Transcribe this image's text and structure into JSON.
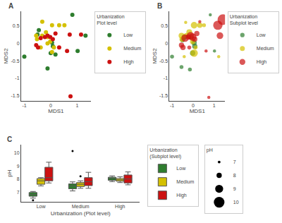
{
  "chart_data": [
    {
      "type": "scatter",
      "title": "A",
      "xlabel": "MDS1",
      "ylabel": "MDS2",
      "xlim": [
        -1.12,
        1.52
      ],
      "ylim": [
        -1.65,
        0.92
      ],
      "xticks": [
        -1,
        0,
        1
      ],
      "yticks": [
        -1.5,
        -1,
        -0.5,
        0,
        0.5
      ],
      "grid": false,
      "legend": "right",
      "legend_title": "Urbanization\nPlot level",
      "series": [
        {
          "name": "Low",
          "color": "#2e7d2e",
          "x": [
            -1.0,
            -0.5,
            -0.45,
            0.05,
            0.08,
            0.0,
            0.18,
            -0.12,
            0.82,
            1.02,
            1.32
          ],
          "y": [
            -0.38,
            0.25,
            0.38,
            0.02,
            -0.08,
            -0.28,
            -0.32,
            -0.72,
            0.82,
            -0.22,
            0.22
          ]
        },
        {
          "name": "Medium",
          "color": "#d4c000",
          "x": [
            -0.32,
            -0.52,
            -0.55,
            -0.32,
            -0.18,
            0.05,
            0.32,
            0.52,
            -0.12,
            -0.02,
            0.12,
            0.05,
            -0.38,
            -0.12
          ],
          "y": [
            0.62,
            0.12,
            0.22,
            0.22,
            0.32,
            0.52,
            0.52,
            0.52,
            0.18,
            0.05,
            -0.12,
            -0.25,
            -0.12,
            0.0
          ]
        },
        {
          "name": "High",
          "color": "#cc1111",
          "x": [
            -0.55,
            -0.48,
            -0.38,
            -0.22,
            -0.12,
            -0.02,
            0.08,
            0.18,
            0.32,
            0.62,
            0.72,
            1.15,
            0.75
          ],
          "y": [
            -0.05,
            -0.12,
            0.15,
            0.18,
            0.22,
            0.18,
            0.12,
            0.28,
            -0.12,
            -0.22,
            0.25,
            0.25,
            -1.52
          ]
        }
      ]
    },
    {
      "type": "bubble",
      "title": "B",
      "xlabel": "MDS1",
      "ylabel": "MDS2",
      "xlim": [
        -1.12,
        1.52
      ],
      "ylim": [
        -1.65,
        0.92
      ],
      "xticks": [
        -1,
        0,
        1
      ],
      "yticks": [
        -1.5,
        -1,
        -0.5,
        0,
        0.5
      ],
      "grid": false,
      "legend": "right",
      "legend_title": "Urbanization\nSubplot level",
      "size_legend": {
        "title": "pH",
        "values": [
          7,
          8,
          9,
          10
        ]
      },
      "series": [
        {
          "name": "Low",
          "color": "#2e7d2e",
          "x": [
            -1.0,
            -0.5,
            -0.42,
            -0.55,
            0.05,
            0.08,
            -0.02,
            -0.15,
            0.82,
            1.02
          ],
          "y": [
            -0.38,
            0.1,
            0.18,
            -0.68,
            0.02,
            -0.08,
            -0.28,
            -0.75,
            0.82,
            -0.22
          ],
          "sizes": [
            7.5,
            7.8,
            8.0,
            7.5,
            8.0,
            8.0,
            8.0,
            7.5,
            7.2,
            7.2
          ]
        },
        {
          "name": "Medium",
          "color": "#d4c000",
          "x": [
            -0.35,
            -0.52,
            -0.55,
            -0.32,
            -0.18,
            0.05,
            0.32,
            0.52,
            -0.12,
            -0.02,
            0.12,
            0.05,
            -0.42,
            1.22
          ],
          "y": [
            0.6,
            0.12,
            0.22,
            0.22,
            0.32,
            0.52,
            0.52,
            0.52,
            0.18,
            0.05,
            -0.12,
            -0.28,
            -0.38,
            -0.38
          ],
          "sizes": [
            7.2,
            8.0,
            8.2,
            8.0,
            8.2,
            8.5,
            8.0,
            7.5,
            8.0,
            8.0,
            7.5,
            8.8,
            7.2,
            7.2
          ]
        },
        {
          "name": "High",
          "color": "#cc1111",
          "x": [
            -0.55,
            -0.48,
            -0.38,
            -0.22,
            -0.12,
            -0.02,
            0.08,
            0.18,
            -0.18,
            0.62,
            1.18,
            1.28,
            1.42,
            0.75,
            0.32
          ],
          "y": [
            -0.05,
            -0.12,
            0.15,
            0.18,
            0.22,
            0.18,
            0.12,
            0.28,
            -0.12,
            -0.22,
            0.52,
            0.22,
            0.68,
            -1.55,
            0.62
          ],
          "sizes": [
            8.0,
            8.0,
            8.8,
            8.0,
            8.8,
            8.8,
            8.0,
            8.0,
            7.5,
            7.2,
            9.5,
            8.5,
            10.0,
            7.2,
            7.2
          ]
        }
      ]
    },
    {
      "type": "box",
      "title": "C",
      "xlabel": "Urbanization (Plot level)",
      "ylabel": "pH",
      "categories": [
        "Low",
        "Medium",
        "High"
      ],
      "ylim": [
        6.3,
        10.6
      ],
      "yticks": [
        7,
        8,
        9,
        10
      ],
      "grid": false,
      "legend": "right",
      "legend_title": "Urbanization\n(Subplot level)",
      "series": [
        {
          "name": "Low",
          "color": "#2e7d2e",
          "q1": [
            6.72,
            7.28,
            7.92
          ],
          "median": [
            6.85,
            7.5,
            8.05
          ],
          "q3": [
            7.0,
            7.65,
            8.15
          ],
          "whislo": [
            6.58,
            7.12,
            7.82
          ],
          "whishi": [
            7.08,
            7.8,
            8.25
          ],
          "fliers": [
            [
              6.42
            ],
            [
              10.12
            ],
            []
          ]
        },
        {
          "name": "Medium",
          "color": "#d4c000",
          "q1": [
            7.62,
            7.45,
            7.85
          ],
          "median": [
            7.88,
            7.62,
            7.95
          ],
          "q3": [
            8.05,
            7.75,
            8.05
          ],
          "whislo": [
            7.5,
            7.32,
            7.75
          ],
          "whishi": [
            8.12,
            7.88,
            8.18
          ],
          "fliers": [
            [],
            [
              8.22
            ],
            []
          ]
        },
        {
          "name": "High",
          "color": "#cc1111",
          "q1": [
            7.88,
            7.52,
            7.72
          ],
          "median": [
            8.12,
            7.82,
            8.02
          ],
          "q3": [
            8.9,
            8.12,
            8.32
          ],
          "whislo": [
            7.72,
            7.32,
            7.58
          ],
          "whishi": [
            9.28,
            8.52,
            8.55
          ],
          "fliers": [
            [],
            [],
            []
          ]
        }
      ]
    }
  ]
}
